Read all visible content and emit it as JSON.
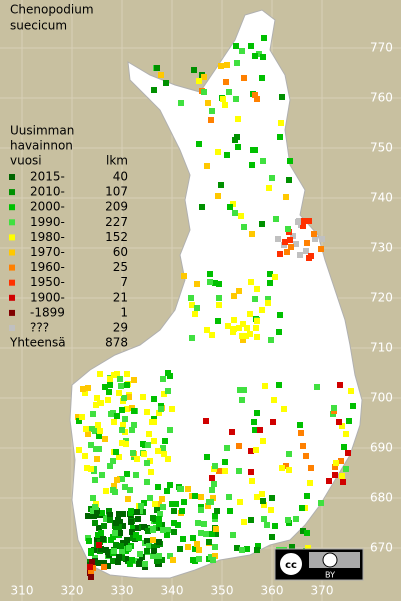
{
  "title": [
    "Chenopodium",
    "suecicum"
  ],
  "legend": {
    "header": [
      "Uusimman",
      "havainnon",
      "vuosi"
    ],
    "count_header": "lkm",
    "rows": [
      {
        "label": "2015-",
        "count": "40",
        "color": "#006400"
      },
      {
        "label": "2010-",
        "count": "107",
        "color": "#009000"
      },
      {
        "label": "2000-",
        "count": "209",
        "color": "#00c000"
      },
      {
        "label": "1990-",
        "count": "227",
        "color": "#40e040"
      },
      {
        "label": "1980-",
        "count": "152",
        "color": "#ffff00"
      },
      {
        "label": "1970-",
        "count": "60",
        "color": "#ffc800"
      },
      {
        "label": "1960-",
        "count": "25",
        "color": "#ff8000"
      },
      {
        "label": "1950-",
        "count": "7",
        "color": "#ff3000"
      },
      {
        "label": "1900-",
        "count": "21",
        "color": "#d00000"
      },
      {
        "label": "-1899",
        "count": "1",
        "color": "#800000"
      },
      {
        "label": "???",
        "count": "29",
        "color": "#c0c0c0"
      }
    ],
    "total_label": "Yhteensä",
    "total": "878"
  },
  "axes": {
    "right": [
      "770",
      "760",
      "750",
      "740",
      "730",
      "720",
      "710",
      "700",
      "690",
      "680",
      "670"
    ],
    "bottom": [
      "310",
      "320",
      "330",
      "340",
      "350",
      "360",
      "370"
    ]
  },
  "license": "BY"
}
